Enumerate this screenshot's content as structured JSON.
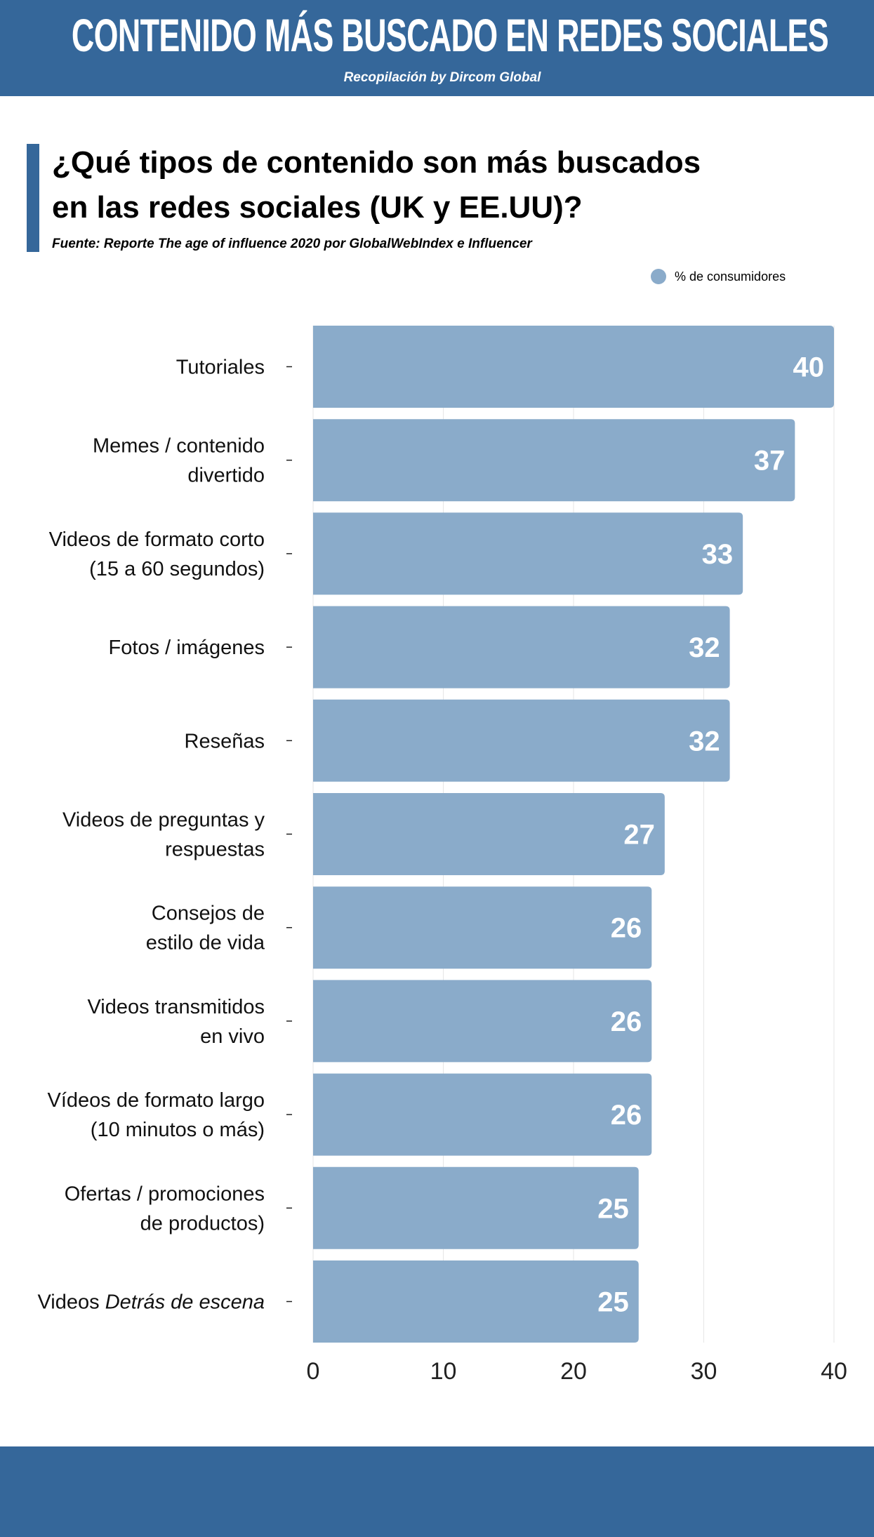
{
  "header": {
    "title": "CONTENIDO MÁS BUSCADO EN REDES SOCIALES",
    "subtitle": "Recopilación by Dircom Global"
  },
  "question": {
    "line1": "¿Qué tipos de contenido son más buscados",
    "line2": "en las redes sociales (UK y EE.UU)?",
    "source": "Fuente: Reporte The age of influence 2020 por GlobalWebIndex e Influencer"
  },
  "colors": {
    "brand": "#35679a",
    "bar": "#8aabca",
    "grid": "#e6e6e6"
  },
  "chart_data": {
    "type": "bar",
    "orientation": "horizontal",
    "title": "¿Qué tipos de contenido son más buscados en las redes sociales (UK y EE.UU)?",
    "legend": [
      "% de consumidores"
    ],
    "legend_position": "top-right",
    "categories": [
      {
        "lines": [
          "Tutoriales"
        ]
      },
      {
        "lines": [
          "Memes / contenido",
          "divertido"
        ]
      },
      {
        "lines": [
          "Videos de formato corto",
          "(15 a 60 segundos)"
        ]
      },
      {
        "lines": [
          "Fotos / imágenes"
        ]
      },
      {
        "lines": [
          "Reseñas"
        ]
      },
      {
        "lines": [
          "Videos de preguntas y",
          "respuestas"
        ]
      },
      {
        "lines": [
          "Consejos de",
          "estilo de vida"
        ]
      },
      {
        "lines": [
          "Videos transmitidos",
          "en vivo"
        ]
      },
      {
        "lines": [
          "Vídeos de formato largo",
          "(10 minutos o más)"
        ]
      },
      {
        "lines": [
          "Ofertas / promociones",
          "de productos)"
        ]
      },
      {
        "lines": [
          "Videos "
        ],
        "italic": "Detrás de escena"
      }
    ],
    "values": [
      40,
      37,
      33,
      32,
      32,
      27,
      26,
      26,
      26,
      25,
      25
    ],
    "xlim": [
      0,
      40
    ],
    "xticks": [
      "0",
      "10",
      "20",
      "30",
      "40"
    ],
    "grid": true
  }
}
